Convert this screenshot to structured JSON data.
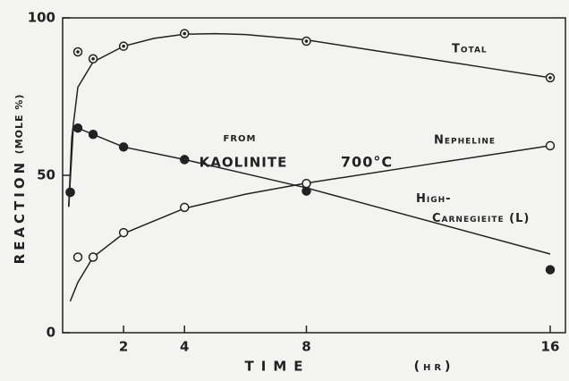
{
  "chart_data": {
    "type": "line",
    "annotations": [
      "From",
      "Kaolinite",
      "700°C"
    ],
    "ylabel": "Reaction",
    "ylabel_unit": "(mole %)",
    "xlabel": "Time",
    "xlabel_unit": "(hr)",
    "xlim": [
      0,
      16.5
    ],
    "xticks": [
      2,
      4,
      8,
      16
    ],
    "ylim": [
      0,
      100
    ],
    "yticks": [
      0,
      50,
      100
    ],
    "color": "#222222",
    "series": [
      {
        "name": "Total",
        "marker": "dotted-circle",
        "x": [
          0.25,
          0.5,
          1,
          2,
          4,
          8,
          16
        ],
        "values": [
          44.6,
          89.2,
          87,
          91,
          95,
          92.6,
          81
        ],
        "curve_x": [
          0.2,
          0.3,
          0.5,
          1,
          2,
          3,
          4,
          5,
          6,
          8,
          10,
          12,
          14,
          16
        ],
        "curve_values": [
          40,
          62,
          78,
          86,
          91,
          93.5,
          94.8,
          95,
          94.7,
          93,
          90,
          87,
          84,
          81
        ]
      },
      {
        "name": "Nepheline",
        "marker": "filled",
        "x": [
          0.25,
          0.5,
          1,
          2,
          4,
          8,
          16
        ],
        "values": [
          44.6,
          65,
          63,
          59,
          55,
          45,
          20
        ],
        "curve_x": [
          0.2,
          0.35,
          0.5,
          2,
          4,
          8,
          16
        ],
        "curve_values": [
          40,
          65,
          65,
          59,
          55,
          46,
          25
        ]
      },
      {
        "name": "High-Carnegieite (L)",
        "marker": "open",
        "x": [
          0.5,
          1,
          2,
          4,
          8,
          16
        ],
        "values": [
          24,
          24,
          31.8,
          39.8,
          47.4,
          59.4
        ],
        "curve_x": [
          0.25,
          0.5,
          1,
          2,
          4,
          6,
          8,
          12,
          16
        ],
        "curve_values": [
          10,
          16,
          24,
          31.5,
          39.5,
          44,
          47.5,
          53.5,
          59.4
        ]
      }
    ]
  }
}
